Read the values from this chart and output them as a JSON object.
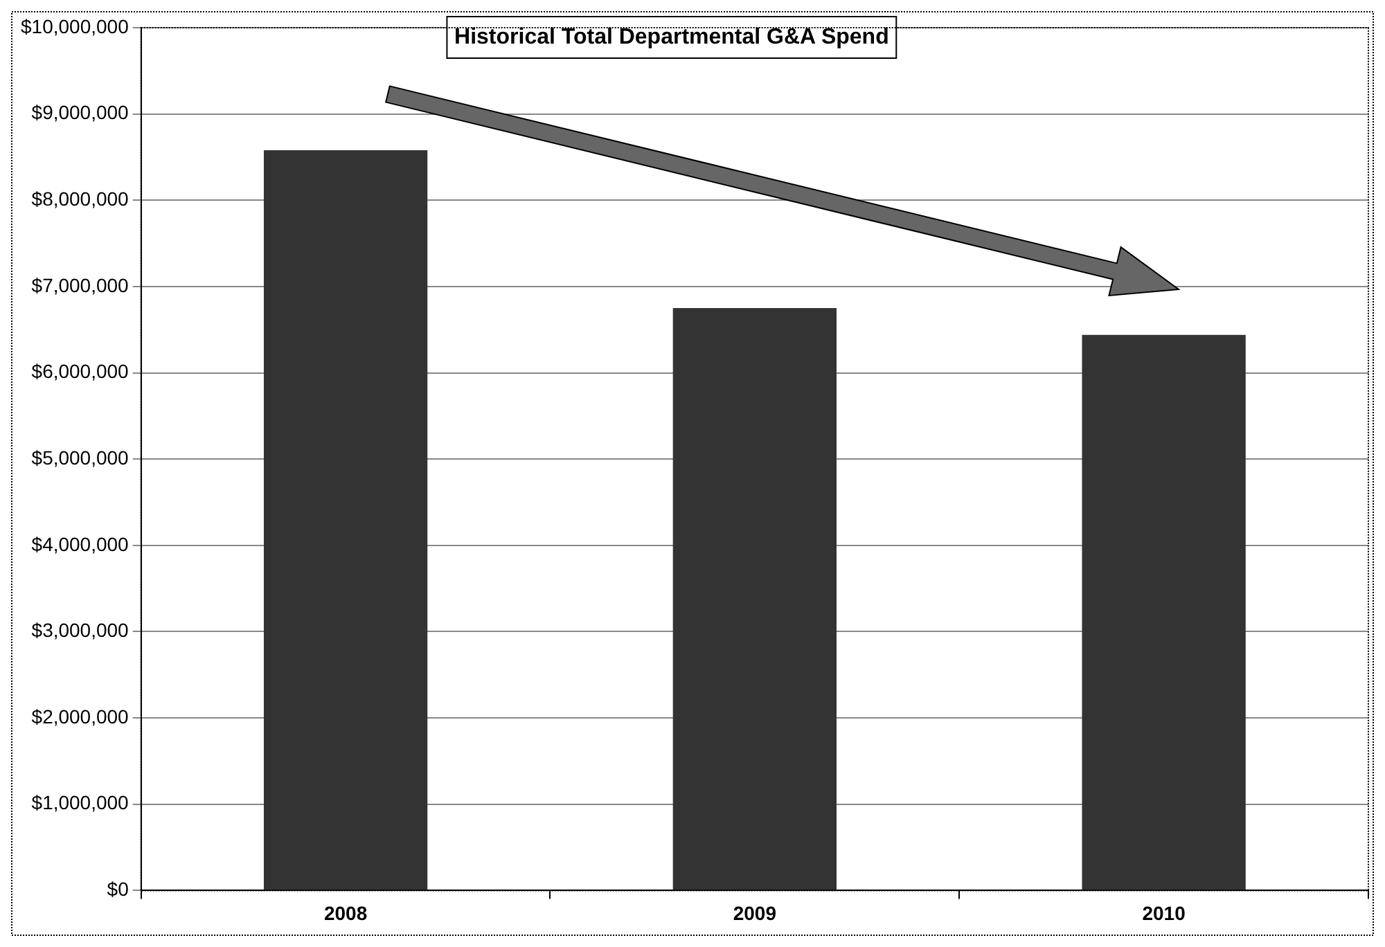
{
  "chart_data": {
    "type": "bar",
    "title": "Historical Total Departmental G&A Spend",
    "categories": [
      "2008",
      "2009",
      "2010"
    ],
    "values": [
      8580000,
      6750000,
      6440000
    ],
    "color": "#333333",
    "ylim": [
      0,
      10000000
    ],
    "yticks": [
      {
        "value": 0,
        "label": "$0"
      },
      {
        "value": 1000000,
        "label": "$1,000,000"
      },
      {
        "value": 2000000,
        "label": "$2,000,000"
      },
      {
        "value": 3000000,
        "label": "$3,000,000"
      },
      {
        "value": 4000000,
        "label": "$4,000,000"
      },
      {
        "value": 5000000,
        "label": "$5,000,000"
      },
      {
        "value": 6000000,
        "label": "$6,000,000"
      },
      {
        "value": 7000000,
        "label": "$7,000,000"
      },
      {
        "value": 8000000,
        "label": "$8,000,000"
      },
      {
        "value": 9000000,
        "label": "$9,000,000"
      },
      {
        "value": 10000000,
        "label": "$10,000,000"
      }
    ],
    "grid": "y",
    "legend": false
  }
}
